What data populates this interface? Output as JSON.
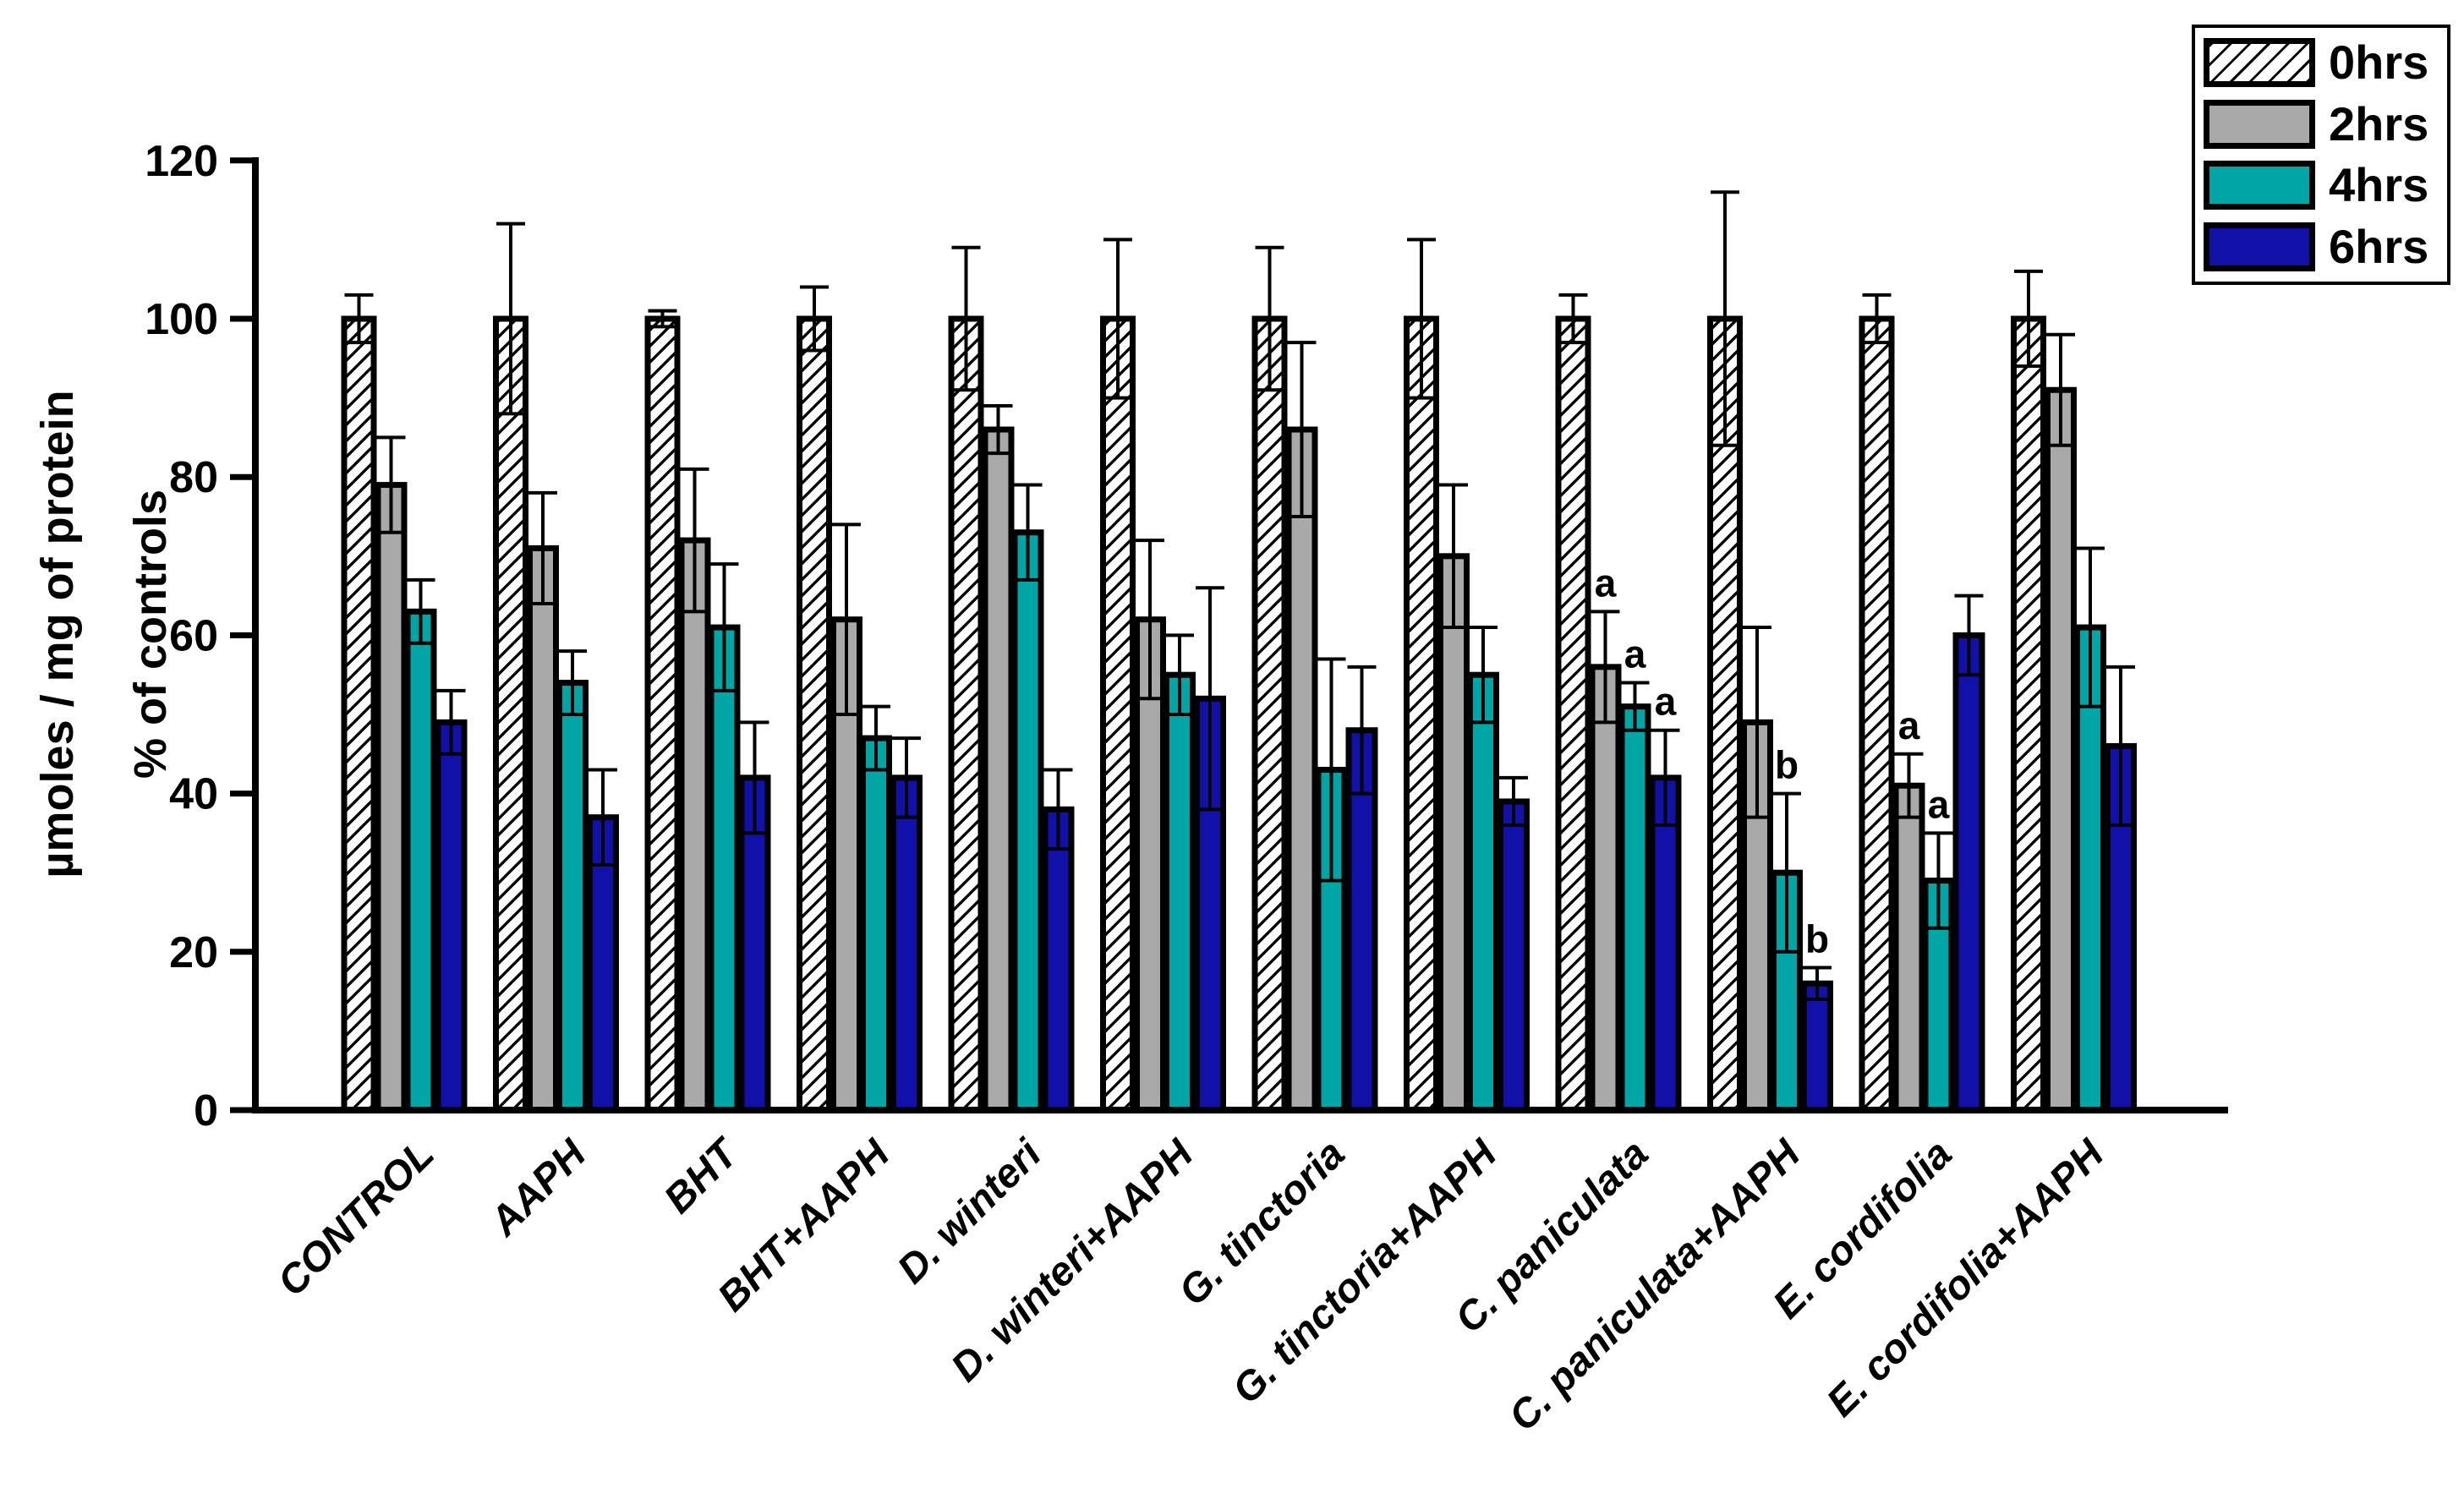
{
  "chart_data": {
    "type": "bar",
    "title": "",
    "ylabel_lines": [
      "µmoles / mg of protein",
      "% of controls"
    ],
    "xlabel": "",
    "ylim": [
      0,
      120
    ],
    "yticks": [
      0,
      20,
      40,
      60,
      80,
      100,
      120
    ],
    "grid": false,
    "legend_position": "top-right",
    "categories": [
      "CONTROL",
      "AAPH",
      "BHT",
      "BHT+AAPH",
      "D. winteri",
      "D. winteri+AAPH",
      "G. tinctoria",
      "G. tinctoria+AAPH",
      "C. paniculata",
      "C. paniculata+AAPH",
      "E. cordifolia",
      "E. cordifolia+AAPH"
    ],
    "series": [
      {
        "name": "0hrs",
        "fill": "hatched",
        "values": [
          100,
          100,
          100,
          100,
          100,
          100,
          100,
          100,
          100,
          100,
          100,
          100
        ],
        "errors": [
          3,
          12,
          1,
          4,
          9,
          10,
          9,
          10,
          3,
          16,
          3,
          6
        ]
      },
      {
        "name": "2hrs",
        "fill": "#A9A9A9",
        "values": [
          79,
          71,
          72,
          62,
          86,
          62,
          86,
          70,
          56,
          49,
          41,
          91
        ],
        "errors": [
          6,
          7,
          9,
          12,
          3,
          10,
          11,
          9,
          7,
          12,
          4,
          7
        ]
      },
      {
        "name": "4hrs",
        "fill": "#00A5A5",
        "values": [
          63,
          54,
          61,
          47,
          73,
          55,
          43,
          55,
          51,
          30,
          29,
          61
        ],
        "errors": [
          4,
          4,
          8,
          4,
          6,
          5,
          14,
          6,
          3,
          10,
          6,
          10
        ]
      },
      {
        "name": "6hrs",
        "fill": "#1111AA",
        "values": [
          49,
          37,
          42,
          42,
          38,
          52,
          48,
          39,
          42,
          16,
          60,
          46
        ],
        "errors": [
          4,
          6,
          7,
          5,
          5,
          14,
          8,
          3,
          6,
          2,
          5,
          10
        ]
      }
    ],
    "annotations": [
      {
        "category": "C. paniculata",
        "series": "2hrs",
        "text": "a"
      },
      {
        "category": "C. paniculata",
        "series": "4hrs",
        "text": "a"
      },
      {
        "category": "C. paniculata",
        "series": "6hrs",
        "text": "a"
      },
      {
        "category": "C. paniculata+AAPH",
        "series": "4hrs",
        "text": "b"
      },
      {
        "category": "C. paniculata+AAPH",
        "series": "6hrs",
        "text": "b"
      },
      {
        "category": "E. cordifolia",
        "series": "2hrs",
        "text": "a"
      },
      {
        "category": "E. cordifolia",
        "series": "4hrs",
        "text": "a"
      }
    ]
  },
  "legend": {
    "items": [
      {
        "label": "0hrs",
        "swatch": "hatched"
      },
      {
        "label": "2hrs",
        "swatch": "#A9A9A9"
      },
      {
        "label": "4hrs",
        "swatch": "#00A5A5"
      },
      {
        "label": "6hrs",
        "swatch": "#1111AA"
      }
    ]
  },
  "colors": {
    "axis": "#000000",
    "bar_outline": "#000000",
    "error_bar": "#000000",
    "background": "#FFFFFF"
  }
}
